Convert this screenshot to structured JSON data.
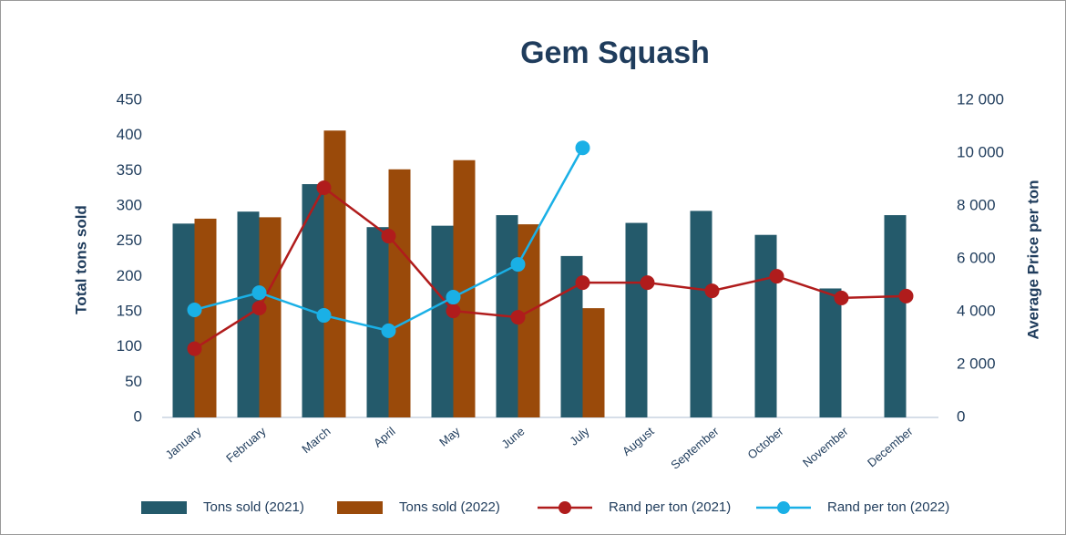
{
  "chart_data": {
    "type": "bar-line",
    "title": "Gem Squash",
    "y_label": "Total tons sold",
    "y2_label": "Average Price per ton",
    "categories": [
      "January",
      "February",
      "March",
      "April",
      "May",
      "June",
      "July",
      "August",
      "September",
      "October",
      "November",
      "December"
    ],
    "series": [
      {
        "name": "Tons sold (2021)",
        "type": "bar",
        "color": "#245a6b",
        "values": [
          275,
          292,
          331,
          270,
          272,
          287,
          229,
          276,
          293,
          259,
          183,
          287
        ]
      },
      {
        "name": "Tons sold (2022)",
        "type": "bar",
        "color": "#9a4a0a",
        "values": [
          282,
          284,
          407,
          352,
          365,
          274,
          155,
          null,
          null,
          null,
          null,
          null
        ]
      },
      {
        "name": "Rand per ton (2021)",
        "type": "line",
        "axis": "y2",
        "color": "#b01c1c",
        "values": [
          2600,
          4140,
          8690,
          6860,
          4030,
          3790,
          5100,
          5100,
          4790,
          5340,
          4520,
          4590
        ]
      },
      {
        "name": "Rand per ton (2022)",
        "type": "line",
        "axis": "y2",
        "color": "#1ab0e6",
        "values": [
          4070,
          4720,
          3860,
          3280,
          4550,
          5790,
          10200,
          null,
          null,
          null,
          null,
          null
        ]
      }
    ],
    "ylim": [
      0,
      450
    ],
    "yticks": [
      0,
      50,
      100,
      150,
      200,
      250,
      300,
      350,
      400,
      450
    ],
    "y2lim": [
      0,
      12000
    ],
    "y2ticks": [
      0,
      {
        "value": 2000,
        "label": "2 000"
      },
      {
        "value": 4000,
        "label": "4 000"
      },
      {
        "value": 6000,
        "label": "6 000"
      },
      {
        "value": 8000,
        "label": "8 000"
      },
      {
        "value": 10000,
        "label": "10 000"
      },
      {
        "value": 12000,
        "label": "12 000"
      }
    ],
    "grid": false,
    "legend": "bottom"
  }
}
